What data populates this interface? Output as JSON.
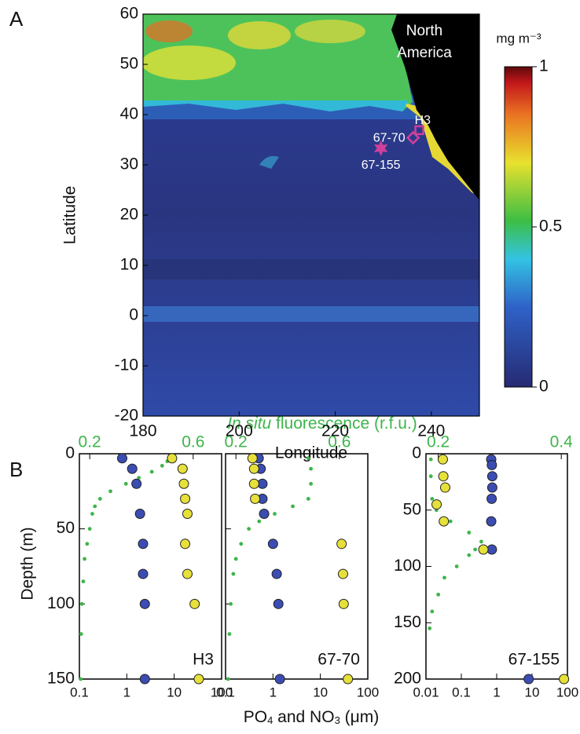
{
  "figure": {
    "panel_a": "A",
    "panel_b": "B",
    "depth_label": "Depth (m)",
    "fluorescence_label": [
      "In situ",
      " fluorescence (r.f.u.)"
    ],
    "nutrient_label": [
      "PO",
      "4",
      " and NO",
      "3",
      " (μm)"
    ]
  },
  "chart_data": [
    {
      "type": "map",
      "xlabel": "Longitude",
      "ylabel": "Latitude",
      "xlim": [
        180,
        250
      ],
      "xticks": [
        180,
        200,
        220,
        240
      ],
      "ylim": [
        -20,
        60
      ],
      "yticks": [
        -20,
        -10,
        0,
        10,
        20,
        30,
        40,
        50,
        60
      ],
      "annotation": [
        "North",
        "America"
      ],
      "colorbar": {
        "label": "mg m⁻³",
        "range": [
          0,
          1
        ],
        "ticks": [
          0,
          0.5,
          1
        ]
      },
      "stations": [
        {
          "label": "H3",
          "lon": 237.5,
          "lat": 36.9,
          "marker": "square",
          "color": "#d0409a"
        },
        {
          "label": "67-70",
          "lon": 236.2,
          "lat": 35.4,
          "marker": "diamond",
          "color": "#d0409a"
        },
        {
          "label": "67-155",
          "lon": 229.5,
          "lat": 33.3,
          "marker": "star",
          "color": "#d0409a"
        }
      ]
    },
    {
      "type": "profile",
      "label": "H3",
      "xlog": true,
      "xlim": [
        0.1,
        100
      ],
      "xticks": [
        0.1,
        1,
        10,
        100
      ],
      "x2lim": [
        0.16,
        0.71
      ],
      "x2ticks": [
        0.2,
        0.6
      ],
      "ylim": [
        0,
        150
      ],
      "yticks": [
        0,
        50,
        100,
        150
      ],
      "show_ytick_labels": true,
      "series": [
        {
          "marker": "dot",
          "axis": "x2",
          "color": "#3db54a",
          "depth": [
            3,
            5,
            8,
            12,
            16,
            20,
            25,
            30,
            35,
            40,
            50,
            60,
            70,
            85,
            100,
            120,
            150
          ],
          "values": [
            0.51,
            0.5,
            0.48,
            0.44,
            0.39,
            0.34,
            0.28,
            0.24,
            0.22,
            0.21,
            0.2,
            0.19,
            0.18,
            0.175,
            0.17,
            0.167,
            0.165
          ]
        },
        {
          "marker": "circle",
          "color": "#3b4db3",
          "depth": [
            3,
            10,
            20,
            40,
            60,
            80,
            100,
            150
          ],
          "values": [
            0.8,
            1.3,
            1.6,
            1.9,
            2.2,
            2.2,
            2.4,
            2.4
          ]
        },
        {
          "marker": "circle",
          "color": "#e6e03a",
          "depth": [
            3,
            10,
            20,
            30,
            40,
            60,
            80,
            100,
            150
          ],
          "values": [
            9,
            15,
            16,
            17,
            19,
            17,
            19,
            27,
            33
          ]
        }
      ]
    },
    {
      "type": "profile",
      "label": "67-70",
      "xlog": true,
      "xlim": [
        0.1,
        100
      ],
      "xticks": [
        0.1,
        1,
        10,
        100
      ],
      "x2lim": [
        0.16,
        0.71
      ],
      "x2ticks": [
        0.2,
        0.6
      ],
      "ylim": [
        0,
        150
      ],
      "yticks": [
        0,
        50,
        100,
        150
      ],
      "show_ytick_labels": false,
      "series": [
        {
          "marker": "dot",
          "axis": "x2",
          "color": "#3db54a",
          "depth": [
            3,
            10,
            20,
            30,
            35,
            40,
            45,
            50,
            60,
            70,
            80,
            100,
            120,
            150
          ],
          "values": [
            0.48,
            0.49,
            0.49,
            0.48,
            0.42,
            0.35,
            0.29,
            0.25,
            0.22,
            0.2,
            0.19,
            0.18,
            0.175,
            0.17
          ]
        },
        {
          "marker": "circle",
          "color": "#3b4db3",
          "depth": [
            3,
            10,
            20,
            30,
            40,
            60,
            80,
            100,
            150
          ],
          "values": [
            0.5,
            0.55,
            0.6,
            0.6,
            0.65,
            1.0,
            1.2,
            1.3,
            1.4
          ]
        },
        {
          "marker": "circle",
          "color": "#e6e03a",
          "depth": [
            3,
            10,
            20,
            30,
            60,
            80,
            100,
            150
          ],
          "values": [
            0.37,
            0.4,
            0.4,
            0.42,
            28,
            30,
            31,
            38
          ]
        }
      ]
    },
    {
      "type": "profile",
      "label": "67-155",
      "xlog": true,
      "xlim": [
        0.01,
        100
      ],
      "xticks": [
        0.01,
        0.1,
        1,
        10,
        100
      ],
      "x2lim": [
        0.18,
        0.41
      ],
      "x2ticks": [
        0.2,
        0.4
      ],
      "ylim": [
        0,
        200
      ],
      "yticks": [
        0,
        50,
        100,
        150,
        200
      ],
      "show_ytick_labels": true,
      "series": [
        {
          "marker": "dot",
          "axis": "x2",
          "color": "#3db54a",
          "depth": [
            5,
            20,
            40,
            50,
            60,
            70,
            78,
            85,
            90,
            100,
            110,
            125,
            140,
            155
          ],
          "values": [
            0.188,
            0.188,
            0.19,
            0.197,
            0.22,
            0.25,
            0.27,
            0.26,
            0.25,
            0.23,
            0.21,
            0.2,
            0.19,
            0.186
          ]
        },
        {
          "marker": "circle",
          "color": "#3b4db3",
          "depth": [
            5,
            10,
            20,
            30,
            40,
            60,
            85,
            200
          ],
          "values": [
            0.7,
            0.73,
            0.75,
            0.75,
            0.72,
            0.7,
            0.73,
            8
          ]
        },
        {
          "marker": "circle",
          "color": "#e6e03a",
          "depth": [
            5,
            20,
            30,
            45,
            60,
            85,
            200
          ],
          "values": [
            0.03,
            0.031,
            0.035,
            0.02,
            0.032,
            0.42,
            80
          ]
        }
      ]
    }
  ]
}
